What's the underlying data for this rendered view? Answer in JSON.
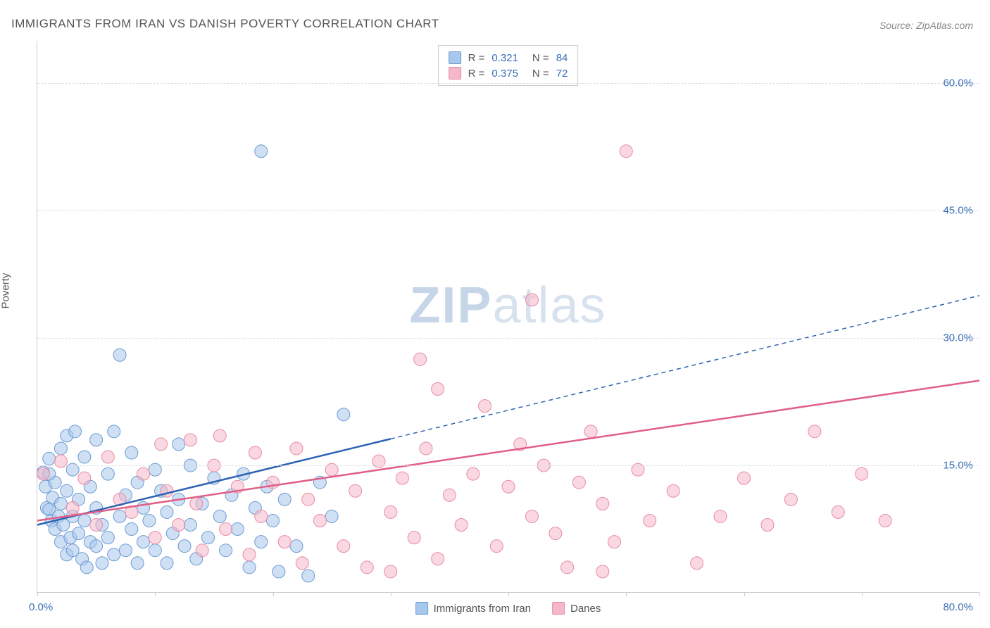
{
  "title": "IMMIGRANTS FROM IRAN VS DANISH POVERTY CORRELATION CHART",
  "source": "Source: ZipAtlas.com",
  "y_axis_label": "Poverty",
  "watermark_bold": "ZIP",
  "watermark_rest": "atlas",
  "chart": {
    "type": "scatter",
    "xlim": [
      0,
      80
    ],
    "ylim": [
      0,
      65
    ],
    "x_origin_label": "0.0%",
    "x_max_label": "80.0%",
    "x_ticks": [
      0,
      10,
      20,
      30,
      40,
      50,
      60,
      70,
      80
    ],
    "y_ticks": [
      {
        "value": 15,
        "label": "15.0%"
      },
      {
        "value": 30,
        "label": "30.0%"
      },
      {
        "value": 45,
        "label": "45.0%"
      },
      {
        "value": 60,
        "label": "60.0%"
      }
    ],
    "background_color": "#ffffff",
    "grid_color": "#dddddd",
    "axis_color": "#cccccc",
    "tick_label_color": "#3b6fb6",
    "marker_radius": 9,
    "marker_opacity": 0.55,
    "series": [
      {
        "name": "Immigrants from Iran",
        "fill_color": "#a8c7ec",
        "stroke_color": "#6b9bd1",
        "line_color": "#2e63b3",
        "R": "0.321",
        "N": "84",
        "trend": {
          "x1": 0,
          "y1": 8.0,
          "x2": 80,
          "y2": 35.0,
          "solid_until_x": 30
        },
        "points": [
          [
            0.5,
            14.2
          ],
          [
            0.7,
            12.5
          ],
          [
            0.8,
            10.0
          ],
          [
            1.0,
            9.8
          ],
          [
            1.0,
            15.8
          ],
          [
            1.2,
            8.5
          ],
          [
            1.3,
            11.2
          ],
          [
            1.5,
            7.5
          ],
          [
            1.5,
            13.0
          ],
          [
            1.8,
            9.0
          ],
          [
            2.0,
            6.0
          ],
          [
            2.0,
            10.5
          ],
          [
            2.0,
            17.0
          ],
          [
            2.2,
            8.0
          ],
          [
            2.5,
            4.5
          ],
          [
            2.5,
            12.0
          ],
          [
            2.5,
            18.5
          ],
          [
            2.8,
            6.5
          ],
          [
            3.0,
            5.0
          ],
          [
            3.0,
            9.0
          ],
          [
            3.0,
            14.5
          ],
          [
            3.2,
            19.0
          ],
          [
            3.5,
            7.0
          ],
          [
            3.5,
            11.0
          ],
          [
            3.8,
            4.0
          ],
          [
            4.0,
            8.5
          ],
          [
            4.0,
            16.0
          ],
          [
            4.2,
            3.0
          ],
          [
            4.5,
            6.0
          ],
          [
            4.5,
            12.5
          ],
          [
            5.0,
            5.5
          ],
          [
            5.0,
            10.0
          ],
          [
            5.0,
            18.0
          ],
          [
            5.5,
            3.5
          ],
          [
            5.5,
            8.0
          ],
          [
            6.0,
            6.5
          ],
          [
            6.0,
            14.0
          ],
          [
            6.5,
            4.5
          ],
          [
            6.5,
            19.0
          ],
          [
            7.0,
            9.0
          ],
          [
            7.0,
            28.0
          ],
          [
            7.5,
            5.0
          ],
          [
            7.5,
            11.5
          ],
          [
            8.0,
            7.5
          ],
          [
            8.0,
            16.5
          ],
          [
            8.5,
            3.5
          ],
          [
            8.5,
            13.0
          ],
          [
            9.0,
            6.0
          ],
          [
            9.0,
            10.0
          ],
          [
            9.5,
            8.5
          ],
          [
            10.0,
            5.0
          ],
          [
            10.0,
            14.5
          ],
          [
            10.5,
            12.0
          ],
          [
            11.0,
            3.5
          ],
          [
            11.0,
            9.5
          ],
          [
            11.5,
            7.0
          ],
          [
            12.0,
            11.0
          ],
          [
            12.0,
            17.5
          ],
          [
            12.5,
            5.5
          ],
          [
            13.0,
            8.0
          ],
          [
            13.0,
            15.0
          ],
          [
            13.5,
            4.0
          ],
          [
            14.0,
            10.5
          ],
          [
            14.5,
            6.5
          ],
          [
            15.0,
            13.5
          ],
          [
            15.5,
            9.0
          ],
          [
            16.0,
            5.0
          ],
          [
            16.5,
            11.5
          ],
          [
            17.0,
            7.5
          ],
          [
            17.5,
            14.0
          ],
          [
            18.0,
            3.0
          ],
          [
            18.5,
            10.0
          ],
          [
            19.0,
            6.0
          ],
          [
            19.5,
            12.5
          ],
          [
            20.0,
            8.5
          ],
          [
            20.5,
            2.5
          ],
          [
            21.0,
            11.0
          ],
          [
            22.0,
            5.5
          ],
          [
            23.0,
            2.0
          ],
          [
            24.0,
            13.0
          ],
          [
            25.0,
            9.0
          ],
          [
            26.0,
            21.0
          ],
          [
            19.0,
            52.0
          ],
          [
            1.0,
            14.0
          ]
        ]
      },
      {
        "name": "Danes",
        "fill_color": "#f5b8c9",
        "stroke_color": "#e88aa5",
        "line_color": "#e15f87",
        "R": "0.375",
        "N": "72",
        "trend": {
          "x1": 0,
          "y1": 8.5,
          "x2": 80,
          "y2": 25.0,
          "solid_until_x": 80
        },
        "points": [
          [
            0.5,
            14.0
          ],
          [
            2.0,
            15.5
          ],
          [
            3.0,
            10.0
          ],
          [
            4.0,
            13.5
          ],
          [
            5.0,
            8.0
          ],
          [
            6.0,
            16.0
          ],
          [
            7.0,
            11.0
          ],
          [
            8.0,
            9.5
          ],
          [
            9.0,
            14.0
          ],
          [
            10.0,
            6.5
          ],
          [
            10.5,
            17.5
          ],
          [
            11.0,
            12.0
          ],
          [
            12.0,
            8.0
          ],
          [
            13.0,
            18.0
          ],
          [
            13.5,
            10.5
          ],
          [
            14.0,
            5.0
          ],
          [
            15.0,
            15.0
          ],
          [
            15.5,
            18.5
          ],
          [
            16.0,
            7.5
          ],
          [
            17.0,
            12.5
          ],
          [
            18.0,
            4.5
          ],
          [
            18.5,
            16.5
          ],
          [
            19.0,
            9.0
          ],
          [
            20.0,
            13.0
          ],
          [
            21.0,
            6.0
          ],
          [
            22.0,
            17.0
          ],
          [
            22.5,
            3.5
          ],
          [
            23.0,
            11.0
          ],
          [
            24.0,
            8.5
          ],
          [
            25.0,
            14.5
          ],
          [
            26.0,
            5.5
          ],
          [
            27.0,
            12.0
          ],
          [
            28.0,
            3.0
          ],
          [
            29.0,
            15.5
          ],
          [
            30.0,
            9.5
          ],
          [
            31.0,
            13.5
          ],
          [
            32.0,
            6.5
          ],
          [
            32.5,
            27.5
          ],
          [
            33.0,
            17.0
          ],
          [
            34.0,
            4.0
          ],
          [
            34.0,
            24.0
          ],
          [
            35.0,
            11.5
          ],
          [
            36.0,
            8.0
          ],
          [
            37.0,
            14.0
          ],
          [
            38.0,
            22.0
          ],
          [
            39.0,
            5.5
          ],
          [
            40.0,
            12.5
          ],
          [
            41.0,
            17.5
          ],
          [
            42.0,
            9.0
          ],
          [
            42.0,
            34.5
          ],
          [
            43.0,
            15.0
          ],
          [
            44.0,
            7.0
          ],
          [
            45.0,
            3.0
          ],
          [
            46.0,
            13.0
          ],
          [
            47.0,
            19.0
          ],
          [
            48.0,
            10.5
          ],
          [
            49.0,
            6.0
          ],
          [
            50.0,
            52.0
          ],
          [
            51.0,
            14.5
          ],
          [
            52.0,
            8.5
          ],
          [
            54.0,
            12.0
          ],
          [
            56.0,
            3.5
          ],
          [
            58.0,
            9.0
          ],
          [
            60.0,
            13.5
          ],
          [
            62.0,
            8.0
          ],
          [
            64.0,
            11.0
          ],
          [
            66.0,
            19.0
          ],
          [
            68.0,
            9.5
          ],
          [
            70.0,
            14.0
          ],
          [
            72.0,
            8.5
          ],
          [
            48.0,
            2.5
          ],
          [
            30.0,
            2.5
          ]
        ]
      }
    ],
    "bottom_legend": [
      {
        "label": "Immigrants from Iran",
        "fill": "#a8c7ec",
        "stroke": "#6b9bd1"
      },
      {
        "label": "Danes",
        "fill": "#f5b8c9",
        "stroke": "#e88aa5"
      }
    ]
  }
}
